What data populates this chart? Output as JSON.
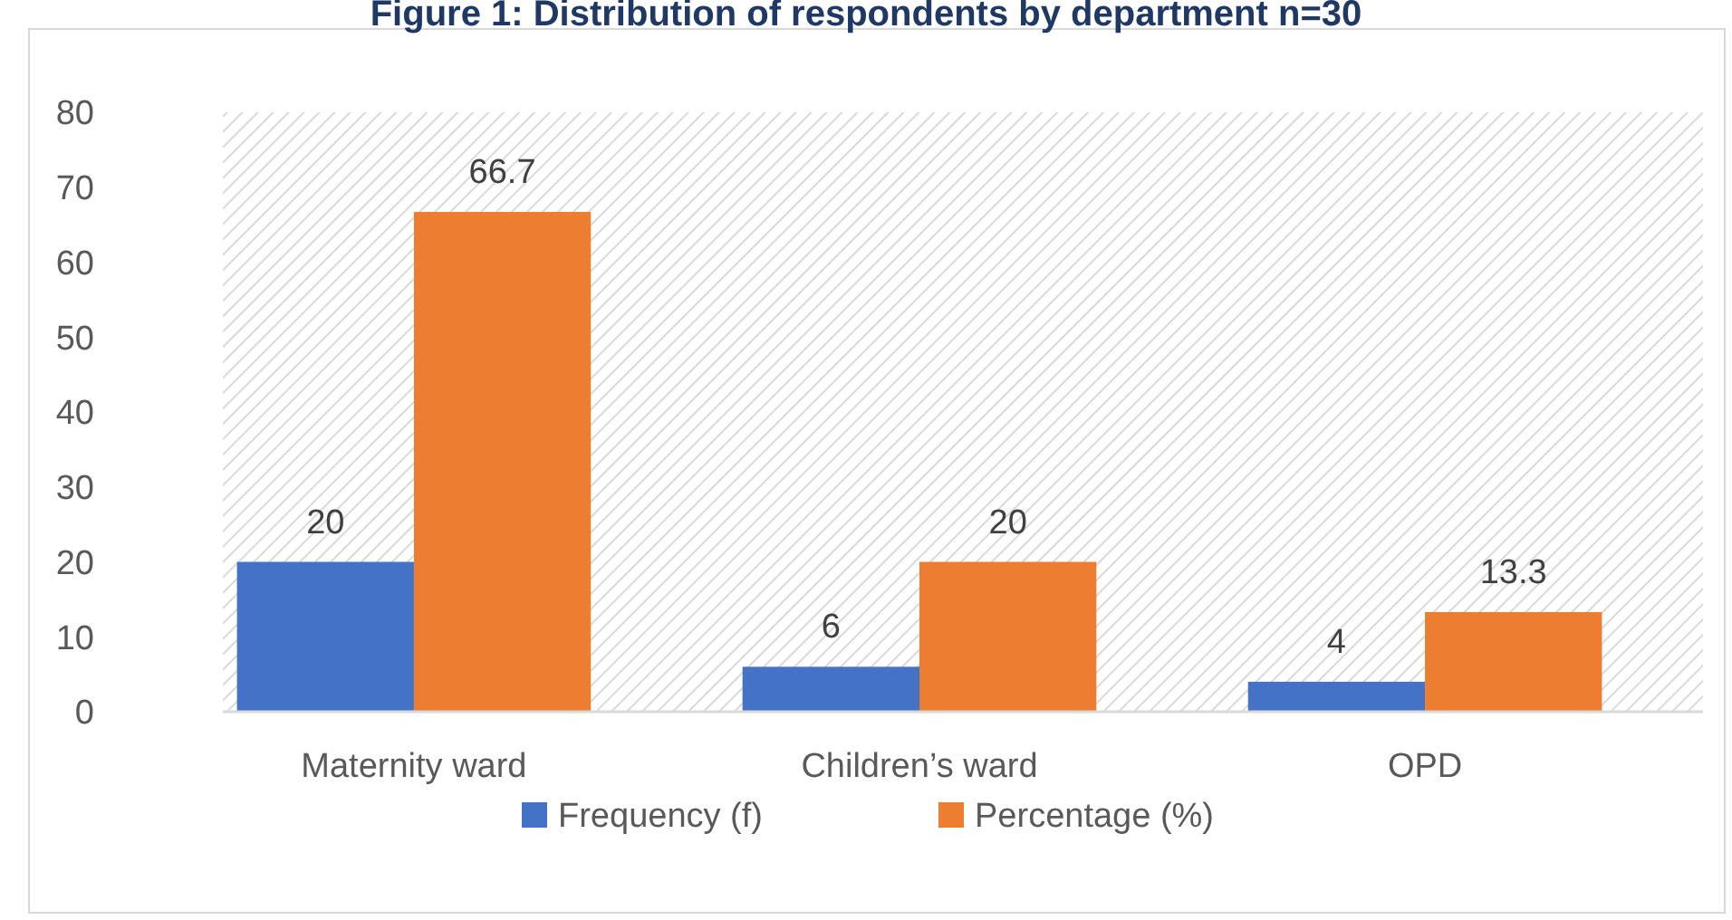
{
  "chart_data": {
    "type": "bar",
    "title": "Figure 1: Distribution of respondents by department n=30",
    "categories": [
      "Maternity ward",
      "Children’s ward",
      "OPD"
    ],
    "series": [
      {
        "name": "Frequency (f)",
        "color": "#4472c4",
        "values": [
          20,
          6,
          4
        ]
      },
      {
        "name": "Percentage (%)",
        "color": "#ed7d31",
        "values": [
          66.7,
          20,
          13.3
        ]
      }
    ],
    "ylim": [
      0,
      80
    ],
    "yticks": [
      0,
      10,
      20,
      30,
      40,
      50,
      60,
      70,
      80
    ],
    "grid": false,
    "legend": "bottom",
    "data_labels": true
  }
}
